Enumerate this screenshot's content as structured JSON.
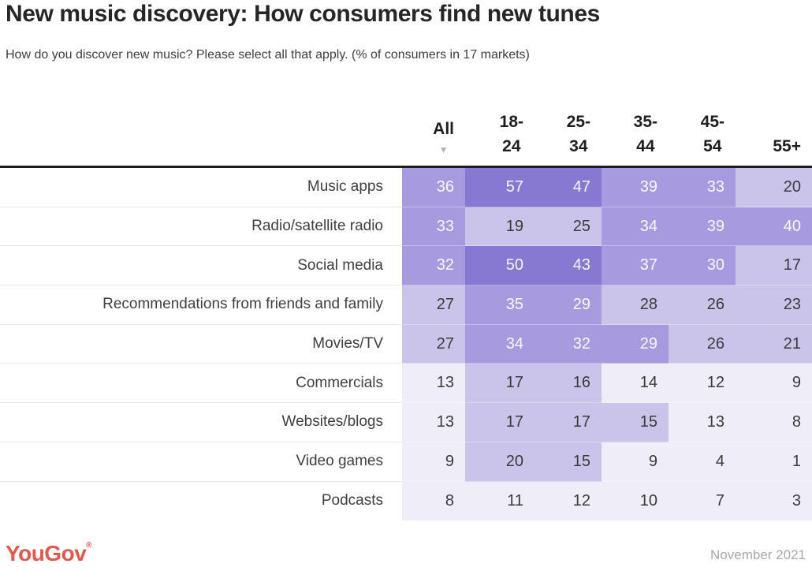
{
  "title": "New music discovery: How consumers find new tunes",
  "subtitle": "How do you discover new music? Please select all that apply. (% of consumers in 17 markets)",
  "table": {
    "columns": [
      {
        "id": "all",
        "label": "All",
        "lines": [
          "All"
        ],
        "sorted": true
      },
      {
        "id": "18-24",
        "label": "18-24",
        "lines": [
          "18-",
          "24"
        ],
        "sorted": false
      },
      {
        "id": "25-34",
        "label": "25-34",
        "lines": [
          "25-",
          "34"
        ],
        "sorted": false
      },
      {
        "id": "35-44",
        "label": "35-44",
        "lines": [
          "35-",
          "44"
        ],
        "sorted": false
      },
      {
        "id": "45-54",
        "label": "45-54",
        "lines": [
          "45-",
          "54"
        ],
        "sorted": false
      },
      {
        "id": "55+",
        "label": "55+",
        "lines": [
          "55+"
        ],
        "sorted": false
      }
    ],
    "sort_icon": "▼"
  },
  "chart_data": {
    "type": "heatmap",
    "title": "New music discovery: How consumers find new tunes",
    "subtitle": "How do you discover new music? Please select all that apply. (% of consumers in 17 markets)",
    "unit": "% of consumers",
    "columns": [
      "All",
      "18-24",
      "25-34",
      "35-44",
      "45-54",
      "55+"
    ],
    "rows": [
      "Music apps",
      "Radio/satellite radio",
      "Social media",
      "Recommendations from friends and family",
      "Movies/TV",
      "Commercials",
      "Websites/blogs",
      "Video games",
      "Podcasts"
    ],
    "values": [
      [
        36,
        57,
        47,
        39,
        33,
        20
      ],
      [
        33,
        19,
        25,
        34,
        39,
        40
      ],
      [
        32,
        50,
        43,
        37,
        30,
        17
      ],
      [
        27,
        35,
        29,
        28,
        26,
        23
      ],
      [
        27,
        34,
        32,
        29,
        26,
        21
      ],
      [
        13,
        17,
        16,
        14,
        12,
        9
      ],
      [
        13,
        17,
        17,
        15,
        13,
        8
      ],
      [
        9,
        20,
        15,
        9,
        4,
        1
      ],
      [
        8,
        11,
        12,
        10,
        7,
        3
      ]
    ],
    "sort": {
      "column": "All",
      "direction": "desc"
    },
    "color_scale": {
      "type": "binned",
      "thresholds": [
        15,
        29,
        43
      ],
      "colors": [
        "#efedf8",
        "#cbc4ea",
        "#a89ade",
        "#8779d2"
      ],
      "text_colors": [
        "#3a3a3a",
        "#3a3a3a",
        "rgba(255,255,255,0.93)",
        "rgba(255,255,255,0.93)"
      ]
    }
  },
  "footer": {
    "logo_text": "YouGov",
    "registered_mark": "®",
    "date_label": "November 2021"
  },
  "colors": {
    "brand_red": "#e4574e",
    "header_rule": "#1c1c1c"
  }
}
